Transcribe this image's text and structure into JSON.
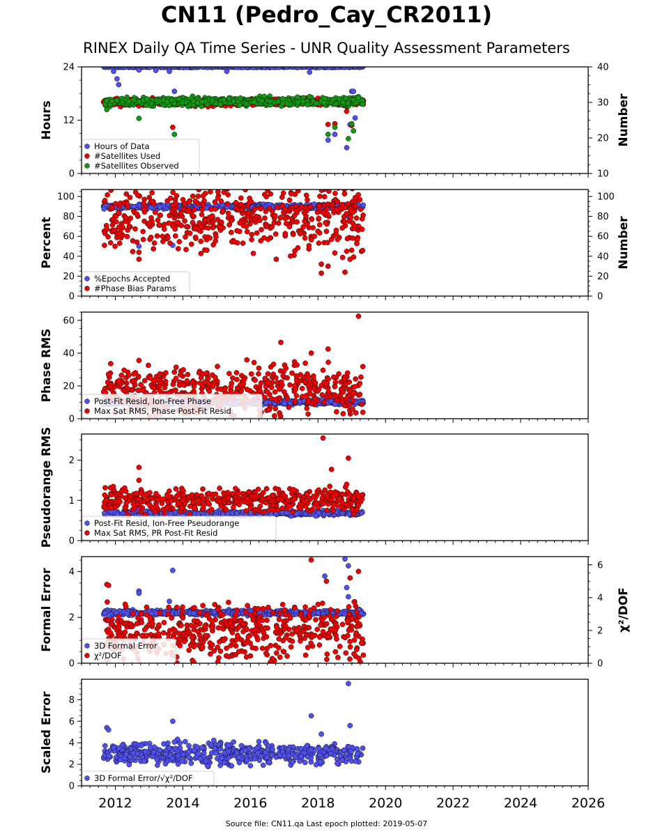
{
  "title": "CN11 (Pedro_Cay_CR2011)",
  "subtitle": "RINEX Daily QA Time Series - UNR Quality Assessment Parameters",
  "footer": "Source file: CN11.qa Last epoch plotted: 2019-05-07",
  "colors": {
    "blue": "#5050ee",
    "red": "#ee0000",
    "green": "#119911",
    "edge": "#111111"
  },
  "chart_data": [
    {
      "type": "scatter",
      "x_range": [
        2011.0,
        2026.0
      ],
      "x_ticks": [
        2012,
        2014,
        2016,
        2018,
        2020,
        2022,
        2024,
        2026
      ],
      "x_start": 2011.65,
      "x_end": 2019.35,
      "ylabel": "Hours",
      "ylim": [
        0,
        24
      ],
      "yticks": [
        0,
        12,
        24
      ],
      "y2label": "Number",
      "y2lim": [
        10,
        40
      ],
      "y2ticks": [
        10,
        20,
        30,
        40
      ],
      "legend": "lower-left",
      "series": [
        {
          "name": "Hours of Data",
          "color": "blue",
          "axis": "left",
          "base": 24,
          "spread": 0.1,
          "outliers": [
            [
              2011.95,
              23.0
            ],
            [
              2012.05,
              21.3
            ],
            [
              2012.1,
              20.0
            ],
            [
              2012.7,
              23.3
            ],
            [
              2013.2,
              23.2
            ],
            [
              2013.6,
              23.0
            ],
            [
              2013.75,
              18.5
            ],
            [
              2015.3,
              23.0
            ],
            [
              2017.75,
              22.8
            ],
            [
              2018.3,
              7.5
            ],
            [
              2018.5,
              8.8
            ],
            [
              2018.85,
              5.8
            ],
            [
              2018.95,
              11.0
            ],
            [
              2019.0,
              18.5
            ],
            [
              2019.05,
              18.5
            ],
            [
              2019.1,
              12.5
            ]
          ]
        },
        {
          "name": "#Satellites Used",
          "color": "red",
          "axis": "right",
          "base": 30,
          "spread": 0.7,
          "outliers": [
            [
              2012.7,
              29.0
            ],
            [
              2013.7,
              23.0
            ],
            [
              2018.3,
              23.8
            ],
            [
              2018.5,
              24.0
            ],
            [
              2018.85,
              27.5
            ],
            [
              2019.0,
              23.5
            ]
          ]
        },
        {
          "name": "#Satellites Observed",
          "color": "green",
          "axis": "right",
          "base": 30.3,
          "spread": 0.8,
          "outliers": [
            [
              2011.75,
              28.0
            ],
            [
              2012.7,
              25.5
            ],
            [
              2013.75,
              21.0
            ],
            [
              2018.3,
              21.0
            ],
            [
              2018.5,
              23.0
            ],
            [
              2018.9,
              19.8
            ],
            [
              2019.0,
              24.0
            ],
            [
              2019.05,
              22.0
            ]
          ]
        }
      ]
    },
    {
      "type": "scatter",
      "x_range": [
        2011.0,
        2026.0
      ],
      "x_ticks": [
        2012,
        2014,
        2016,
        2018,
        2020,
        2022,
        2024,
        2026
      ],
      "x_start": 2011.65,
      "x_end": 2019.35,
      "ylabel": "Percent",
      "ylim": [
        0,
        107
      ],
      "yticks": [
        0,
        20,
        40,
        60,
        80,
        100
      ],
      "y2label": "Number",
      "y2lim": [
        0,
        107
      ],
      "y2ticks": [
        0,
        20,
        40,
        60,
        80,
        100
      ],
      "legend": "lower-left",
      "series": [
        {
          "name": "%Epochs Accepted",
          "color": "blue",
          "axis": "left",
          "base": 90,
          "spread": 1.5,
          "outliers": [
            [
              2012.7,
              50.0
            ],
            [
              2013.7,
              51.0
            ],
            [
              2018.9,
              80.0
            ]
          ]
        },
        {
          "name": "#Phase Bias Params",
          "color": "red",
          "axis": "right",
          "base": 78,
          "spread": 22,
          "outliers": [
            [
              2012.7,
              37.0
            ],
            [
              2012.7,
              44.0
            ],
            [
              2018.1,
              32.0
            ],
            [
              2018.1,
              23.0
            ],
            [
              2018.3,
              30.0
            ],
            [
              2018.8,
              24.0
            ],
            [
              2018.85,
              45.0
            ],
            [
              2018.95,
              37.0
            ],
            [
              2019.0,
              46.0
            ]
          ]
        }
      ]
    },
    {
      "type": "scatter",
      "x_range": [
        2011.0,
        2026.0
      ],
      "x_ticks": [
        2012,
        2014,
        2016,
        2018,
        2020,
        2022,
        2024,
        2026
      ],
      "x_start": 2011.65,
      "x_end": 2019.35,
      "ylabel": "Phase RMS",
      "ylim": [
        0,
        65
      ],
      "yticks": [
        0,
        20,
        40,
        60
      ],
      "legend": "lower-left",
      "series": [
        {
          "name": "Post-Fit Resid, Ion-Free Phase",
          "color": "blue",
          "axis": "left",
          "base": 10,
          "spread": 1.0,
          "outliers": []
        },
        {
          "name": "Max Sat RMS, Phase Post-Fit Resid",
          "color": "red",
          "axis": "left",
          "base": 17,
          "spread": 10,
          "outliers": [
            [
              2012.7,
              35.5
            ],
            [
              2016.9,
              46.5
            ],
            [
              2017.8,
              40.0
            ],
            [
              2018.3,
              42.5
            ],
            [
              2019.2,
              62.5
            ]
          ]
        }
      ]
    },
    {
      "type": "scatter",
      "x_range": [
        2011.0,
        2026.0
      ],
      "x_ticks": [
        2012,
        2014,
        2016,
        2018,
        2020,
        2022,
        2024,
        2026
      ],
      "x_start": 2011.65,
      "x_end": 2019.35,
      "ylabel": "Pseudorange RMS",
      "ylim": [
        0,
        2.65
      ],
      "yticks": [
        0,
        1,
        2
      ],
      "legend": "lower-left",
      "series": [
        {
          "name": "Post-Fit Resid, Ion-Free Pseudorange",
          "color": "blue",
          "axis": "left",
          "base": 0.68,
          "spread": 0.04,
          "outliers": []
        },
        {
          "name": "Max Sat RMS, PR Post-Fit Resid",
          "color": "red",
          "axis": "left",
          "base": 1.0,
          "spread": 0.2,
          "outliers": [
            [
              2012.7,
              1.82
            ],
            [
              2012.7,
              1.5
            ],
            [
              2018.15,
              2.55
            ],
            [
              2018.35,
              1.35
            ],
            [
              2018.4,
              1.77
            ],
            [
              2018.9,
              2.05
            ],
            [
              2018.85,
              1.4
            ]
          ]
        }
      ]
    },
    {
      "type": "scatter",
      "x_range": [
        2011.0,
        2026.0
      ],
      "x_ticks": [
        2012,
        2014,
        2016,
        2018,
        2020,
        2022,
        2024,
        2026
      ],
      "x_start": 2011.65,
      "x_end": 2019.35,
      "ylabel": "Formal Error",
      "ylim": [
        0,
        4.65
      ],
      "yticks": [
        0,
        2,
        4
      ],
      "y2label": "χ²/DOF",
      "y2lim": [
        0,
        6.5
      ],
      "y2ticks": [
        0,
        2,
        4,
        6
      ],
      "legend": "lower-left",
      "series": [
        {
          "name": "3D Formal Error",
          "color": "blue",
          "axis": "left",
          "base": 2.2,
          "spread": 0.08,
          "outliers": [
            [
              2012.7,
              3.15
            ],
            [
              2012.7,
              3.05
            ],
            [
              2013.7,
              4.05
            ],
            [
              2013.6,
              2.7
            ],
            [
              2018.2,
              3.8
            ],
            [
              2018.8,
              4.55
            ],
            [
              2018.9,
              4.25
            ],
            [
              2018.85,
              3.3
            ],
            [
              2018.9,
              2.9
            ]
          ]
        },
        {
          "name": "χ²/DOF",
          "color": "red",
          "axis": "right",
          "base": 1.9,
          "spread": 1.2,
          "outliers": [
            [
              2011.75,
              4.8
            ],
            [
              2011.8,
              4.75
            ],
            [
              2017.8,
              6.3
            ],
            [
              2018.25,
              5.0
            ],
            [
              2018.95,
              5.2
            ],
            [
              2019.2,
              5.6
            ]
          ]
        }
      ]
    },
    {
      "type": "scatter",
      "x_range": [
        2011.0,
        2026.0
      ],
      "x_ticks": [
        2012,
        2014,
        2016,
        2018,
        2020,
        2022,
        2024,
        2026
      ],
      "x_start": 2011.65,
      "x_end": 2019.35,
      "ylabel": "Scaled Error",
      "ylim": [
        0,
        9.9
      ],
      "yticks": [
        0,
        2,
        4,
        6,
        8
      ],
      "legend": "lower-left",
      "series": [
        {
          "name": "3D Formal Error/√χ²/DOF",
          "color": "blue",
          "axis": "left",
          "base": 3.0,
          "spread": 0.7,
          "outliers": [
            [
              2011.75,
              5.4
            ],
            [
              2011.8,
              5.2
            ],
            [
              2013.7,
              6.0
            ],
            [
              2017.8,
              6.5
            ],
            [
              2018.9,
              9.5
            ],
            [
              2018.95,
              5.6
            ],
            [
              2018.1,
              4.8
            ]
          ]
        }
      ]
    }
  ]
}
